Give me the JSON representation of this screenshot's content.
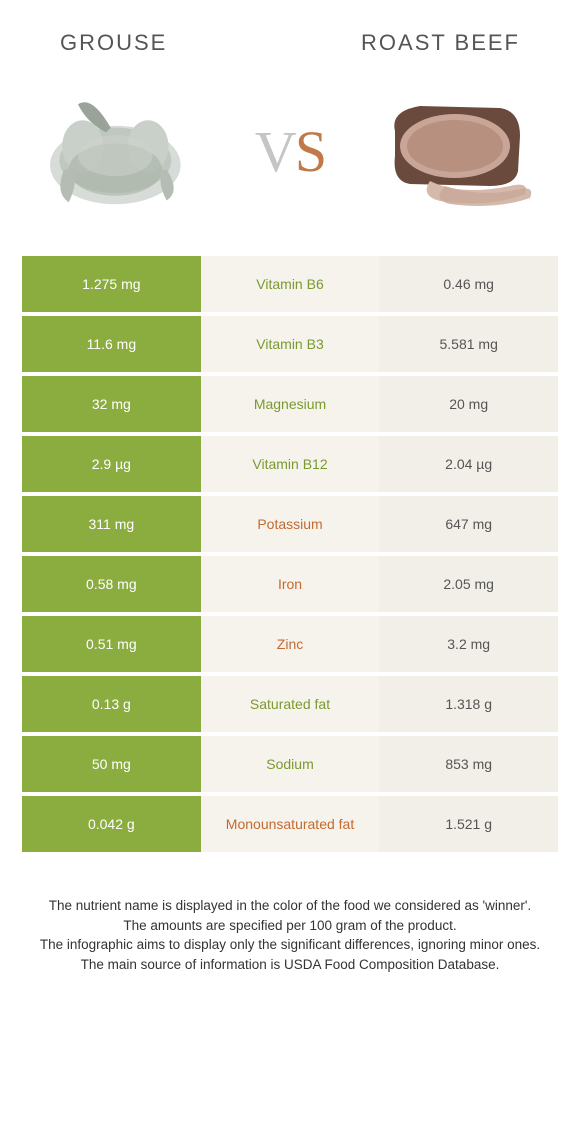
{
  "header": {
    "left": "GROUSE",
    "right": "ROAST BEEF"
  },
  "vs": {
    "v": "V",
    "s": "S"
  },
  "colors": {
    "grouse_bg": "#8bac3f",
    "beef_bg": "#f2efe8",
    "grouse_text": "#7a9a2f",
    "beef_text": "#c46a2e",
    "mid_bg": "#f6f3ed"
  },
  "rows": [
    {
      "left": "1.275 mg",
      "mid": "Vitamin B6",
      "right": "0.46 mg",
      "winner": "grouse"
    },
    {
      "left": "11.6 mg",
      "mid": "Vitamin B3",
      "right": "5.581 mg",
      "winner": "grouse"
    },
    {
      "left": "32 mg",
      "mid": "Magnesium",
      "right": "20 mg",
      "winner": "grouse"
    },
    {
      "left": "2.9 µg",
      "mid": "Vitamin B12",
      "right": "2.04 µg",
      "winner": "grouse"
    },
    {
      "left": "311 mg",
      "mid": "Potassium",
      "right": "647 mg",
      "winner": "beef"
    },
    {
      "left": "0.58 mg",
      "mid": "Iron",
      "right": "2.05 mg",
      "winner": "beef"
    },
    {
      "left": "0.51 mg",
      "mid": "Zinc",
      "right": "3.2 mg",
      "winner": "beef"
    },
    {
      "left": "0.13 g",
      "mid": "Saturated fat",
      "right": "1.318 g",
      "winner": "grouse"
    },
    {
      "left": "50 mg",
      "mid": "Sodium",
      "right": "853 mg",
      "winner": "grouse"
    },
    {
      "left": "0.042 g",
      "mid": "Monounsaturated fat",
      "right": "1.521 g",
      "winner": "beef"
    }
  ],
  "footer": {
    "line1": "The nutrient name is displayed in the color of the food we considered as 'winner'.",
    "line2": "The amounts are specified per 100 gram of the product.",
    "line3": "The infographic aims to display only the significant differences, ignoring minor ones.",
    "line4": "The main source of information is USDA Food Composition Database."
  }
}
